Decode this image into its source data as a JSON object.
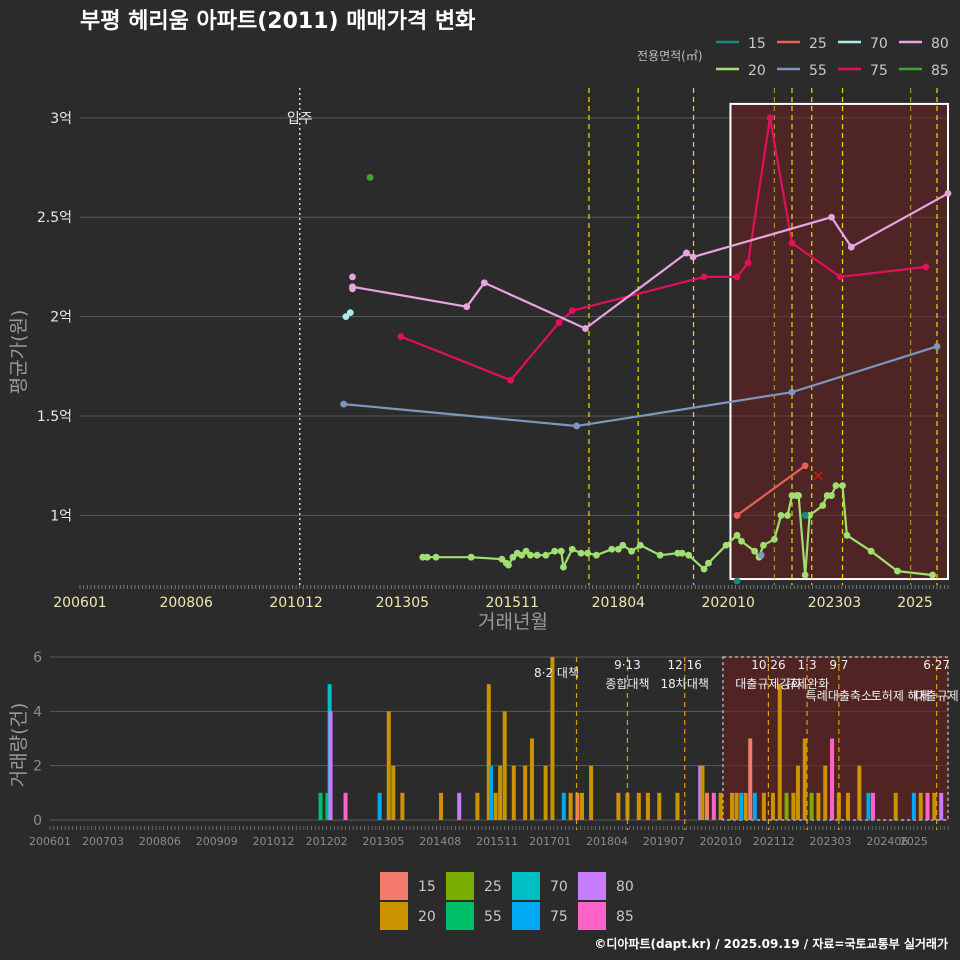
{
  "chart_data": [
    {
      "type": "line",
      "title": "부평 헤리움 아파트(2011) 매매가격 변화",
      "xlabel": "거래년월",
      "ylabel": "평균가(원)",
      "x_ticks": [
        "200601",
        "200806",
        "201012",
        "201305",
        "201511",
        "201804",
        "202010",
        "202303",
        "2025"
      ],
      "y_ticks": [
        {
          "v": 1.0,
          "label": "1억"
        },
        {
          "v": 1.5,
          "label": "1.5억"
        },
        {
          "v": 2.0,
          "label": "2억"
        },
        {
          "v": 2.5,
          "label": "2.5억"
        },
        {
          "v": 3.0,
          "label": "3억"
        }
      ],
      "ylim": [
        0.65,
        3.15
      ],
      "xlim": [
        2006.0,
        2025.75
      ],
      "legend_title": "전용면적(㎡)",
      "legend": [
        {
          "name": "15",
          "color": "#1a8a86"
        },
        {
          "name": "25",
          "color": "#e8605a"
        },
        {
          "name": "70",
          "color": "#a8ecec"
        },
        {
          "name": "80",
          "color": "#e8a4e0"
        },
        {
          "name": "20",
          "color": "#a0e070"
        },
        {
          "name": "55",
          "color": "#7f96bc"
        },
        {
          "name": "75",
          "color": "#e0105a"
        },
        {
          "name": "85",
          "color": "#3aa832"
        }
      ],
      "move_in": {
        "x": 2011.0,
        "label": "입주"
      },
      "policy_lines": [
        2017.58,
        2018.7,
        2019.96,
        2022.2,
        2022.65,
        2023.35,
        2025.5
      ],
      "policy_lines_shaded": [
        2021.8,
        2024.9
      ],
      "highlight": {
        "x0": 2020.8,
        "x1": 2025.75,
        "y0": 0.68,
        "y1": 3.07
      },
      "series": [
        {
          "name": "20",
          "color": "#a0e070",
          "points": [
            [
              2013.8,
              0.79
            ],
            [
              2013.9,
              0.79
            ],
            [
              2014.1,
              0.79
            ],
            [
              2014.9,
              0.79
            ],
            [
              2015.6,
              0.78
            ],
            [
              2015.7,
              0.76
            ],
            [
              2015.75,
              0.75
            ],
            [
              2015.85,
              0.79
            ],
            [
              2015.95,
              0.81
            ],
            [
              2016.05,
              0.8
            ],
            [
              2016.15,
              0.82
            ],
            [
              2016.25,
              0.8
            ],
            [
              2016.4,
              0.8
            ],
            [
              2016.6,
              0.8
            ],
            [
              2016.8,
              0.82
            ],
            [
              2016.95,
              0.82
            ],
            [
              2017.0,
              0.74
            ],
            [
              2017.2,
              0.83
            ],
            [
              2017.4,
              0.81
            ],
            [
              2017.55,
              0.81
            ],
            [
              2017.75,
              0.8
            ],
            [
              2018.1,
              0.83
            ],
            [
              2018.25,
              0.83
            ],
            [
              2018.35,
              0.85
            ],
            [
              2018.55,
              0.82
            ],
            [
              2018.75,
              0.85
            ],
            [
              2019.2,
              0.8
            ],
            [
              2019.6,
              0.81
            ],
            [
              2019.7,
              0.81
            ],
            [
              2019.85,
              0.8
            ],
            [
              2020.2,
              0.73
            ],
            [
              2020.3,
              0.76
            ],
            [
              2020.7,
              0.85
            ],
            [
              2020.95,
              0.9
            ],
            [
              2021.05,
              0.87
            ],
            [
              2021.35,
              0.82
            ],
            [
              2021.45,
              0.79
            ],
            [
              2021.55,
              0.85
            ],
            [
              2021.8,
              0.88
            ],
            [
              2021.95,
              1.0
            ],
            [
              2022.1,
              1.0
            ],
            [
              2022.2,
              1.1
            ],
            [
              2022.3,
              1.1
            ],
            [
              2022.35,
              1.1
            ],
            [
              2022.5,
              0.7
            ],
            [
              2022.6,
              1.0
            ],
            [
              2022.9,
              1.05
            ],
            [
              2023.0,
              1.1
            ],
            [
              2023.1,
              1.1
            ],
            [
              2023.2,
              1.15
            ],
            [
              2023.35,
              1.15
            ],
            [
              2023.45,
              0.9
            ],
            [
              2024.0,
              0.82
            ],
            [
              2024.6,
              0.72
            ],
            [
              2025.4,
              0.7
            ]
          ]
        },
        {
          "name": "25",
          "color": "#e8605a",
          "points": [
            [
              2020.95,
              1.0
            ],
            [
              2022.5,
              1.25
            ]
          ]
        },
        {
          "name": "55",
          "color": "#7f96bc",
          "points": [
            [
              2012.0,
              1.56
            ],
            [
              2017.3,
              1.45
            ],
            [
              2022.2,
              1.62
            ],
            [
              2025.5,
              1.85
            ]
          ]
        },
        {
          "name": "75",
          "color": "#e0105a",
          "points": [
            [
              2013.3,
              1.9
            ],
            [
              2015.8,
              1.68
            ],
            [
              2016.9,
              1.97
            ],
            [
              2017.2,
              2.03
            ],
            [
              2020.2,
              2.2
            ],
            [
              2020.95,
              2.2
            ],
            [
              2021.2,
              2.27
            ],
            [
              2021.7,
              3.0
            ],
            [
              2022.2,
              2.37
            ],
            [
              2023.3,
              2.2
            ],
            [
              2025.25,
              2.25
            ]
          ]
        },
        {
          "name": "80",
          "color": "#e8a4e0",
          "points": [
            [
              2012.2,
              2.15
            ],
            [
              2014.8,
              2.05
            ],
            [
              2015.2,
              2.17
            ],
            [
              2017.5,
              1.94
            ],
            [
              2019.8,
              2.32
            ],
            [
              2019.95,
              2.3
            ],
            [
              2023.1,
              2.5
            ],
            [
              2023.55,
              2.35
            ],
            [
              2025.75,
              2.62
            ]
          ]
        }
      ],
      "points_only": [
        {
          "series": "80",
          "color": "#e8a4e0",
          "x": 2012.2,
          "y": 2.2
        },
        {
          "series": "80",
          "color": "#e8a4e0",
          "x": 2012.2,
          "y": 2.14
        },
        {
          "series": "80",
          "color": "#e8a4e0",
          "x": 2019.8,
          "y": 2.32
        },
        {
          "series": "70",
          "color": "#a8ecec",
          "x": 2012.05,
          "y": 2.0
        },
        {
          "series": "70",
          "color": "#a8ecec",
          "x": 2012.15,
          "y": 2.02
        },
        {
          "series": "85",
          "color": "#3aa832",
          "x": 2012.6,
          "y": 2.7
        },
        {
          "series": "15",
          "color": "#1a8a86",
          "x": 2020.95,
          "y": 0.67
        },
        {
          "series": "15",
          "color": "#1a8a86",
          "x": 2022.5,
          "y": 1.0
        },
        {
          "series": "55",
          "color": "#7f96bc",
          "x": 2021.5,
          "y": 0.8
        },
        {
          "series": "25",
          "color": "#c81818",
          "x": 2022.8,
          "y": 1.2,
          "marker": "x"
        }
      ]
    },
    {
      "type": "bar",
      "ylabel": "거래량(건)",
      "ylim": [
        0,
        6
      ],
      "y_ticks": [
        0,
        2,
        4,
        6
      ],
      "x_ticks": [
        "200601",
        "200703",
        "200806",
        "200909",
        "201012",
        "201202",
        "201305",
        "201408",
        "201511",
        "201701",
        "201804",
        "201907",
        "202010",
        "202112",
        "202303",
        "202406",
        "2025"
      ],
      "xlim": [
        2006.0,
        2025.75
      ],
      "legend": [
        {
          "name": "15",
          "color": "#f47a6e"
        },
        {
          "name": "20",
          "color": "#c99400"
        },
        {
          "name": "25",
          "color": "#79ad00"
        },
        {
          "name": "55",
          "color": "#00bf6a"
        },
        {
          "name": "70",
          "color": "#00bfc4"
        },
        {
          "name": "75",
          "color": "#00a9f4"
        },
        {
          "name": "80",
          "color": "#c77cff"
        },
        {
          "name": "85",
          "color": "#ff62c9"
        }
      ],
      "annotations": [
        {
          "x": 2017.58,
          "line1": "8·2 대책",
          "line2": ""
        },
        {
          "x": 2018.7,
          "line1": "9·13",
          "line2": "종합대책"
        },
        {
          "x": 2019.96,
          "line1": "12·16",
          "line2": "18차대책"
        },
        {
          "x": 2021.8,
          "line1": "10·26",
          "line2": "대출규제강화"
        },
        {
          "x": 2022.65,
          "line1": "1·3",
          "line2": "규제완화"
        },
        {
          "x": 2023.35,
          "line1": "9·7",
          "line2": "특례대출축소"
        },
        {
          "x": 2025.5,
          "line1": "6·27",
          "line2": "대출규제"
        }
      ],
      "annotation_extra": "토허제 해제",
      "bars": [
        {
          "x": 2011.95,
          "v": 1,
          "c": "#00bf6a"
        },
        {
          "x": 2012.1,
          "v": 1,
          "c": "#00bf6a"
        },
        {
          "x": 2012.15,
          "v": 5,
          "c": "#00bfc4"
        },
        {
          "x": 2012.17,
          "v": 4,
          "c": "#c77cff"
        },
        {
          "x": 2012.5,
          "v": 1,
          "c": "#ff62c9"
        },
        {
          "x": 2013.25,
          "v": 1,
          "c": "#00a9f4"
        },
        {
          "x": 2013.45,
          "v": 4,
          "c": "#c99400"
        },
        {
          "x": 2013.55,
          "v": 2,
          "c": "#c99400"
        },
        {
          "x": 2013.75,
          "v": 1,
          "c": "#c99400"
        },
        {
          "x": 2014.6,
          "v": 1,
          "c": "#c99400"
        },
        {
          "x": 2015.0,
          "v": 1,
          "c": "#c77cff"
        },
        {
          "x": 2015.4,
          "v": 1,
          "c": "#c99400"
        },
        {
          "x": 2015.65,
          "v": 5,
          "c": "#c99400"
        },
        {
          "x": 2015.7,
          "v": 2,
          "c": "#00a9f4"
        },
        {
          "x": 2015.8,
          "v": 1,
          "c": "#c99400"
        },
        {
          "x": 2015.9,
          "v": 2,
          "c": "#c99400"
        },
        {
          "x": 2016.0,
          "v": 4,
          "c": "#c99400"
        },
        {
          "x": 2016.2,
          "v": 2,
          "c": "#c99400"
        },
        {
          "x": 2016.45,
          "v": 2,
          "c": "#c99400"
        },
        {
          "x": 2016.6,
          "v": 3,
          "c": "#c99400"
        },
        {
          "x": 2016.9,
          "v": 2,
          "c": "#c99400"
        },
        {
          "x": 2017.05,
          "v": 6,
          "c": "#c99400"
        },
        {
          "x": 2017.3,
          "v": 1,
          "c": "#00a9f4"
        },
        {
          "x": 2017.45,
          "v": 1,
          "c": "#c99400"
        },
        {
          "x": 2017.6,
          "v": 1,
          "c": "#f47a6e"
        },
        {
          "x": 2017.7,
          "v": 1,
          "c": "#c99400"
        },
        {
          "x": 2017.9,
          "v": 2,
          "c": "#c99400"
        },
        {
          "x": 2018.5,
          "v": 1,
          "c": "#c99400"
        },
        {
          "x": 2018.7,
          "v": 1,
          "c": "#c99400"
        },
        {
          "x": 2018.95,
          "v": 1,
          "c": "#c99400"
        },
        {
          "x": 2019.15,
          "v": 1,
          "c": "#c99400"
        },
        {
          "x": 2019.4,
          "v": 1,
          "c": "#c99400"
        },
        {
          "x": 2019.8,
          "v": 1,
          "c": "#c99400"
        },
        {
          "x": 2020.3,
          "v": 2,
          "c": "#c77cff"
        },
        {
          "x": 2020.35,
          "v": 2,
          "c": "#c99400"
        },
        {
          "x": 2020.45,
          "v": 1,
          "c": "#f47a6e"
        },
        {
          "x": 2020.6,
          "v": 1,
          "c": "#ff62c9"
        },
        {
          "x": 2020.75,
          "v": 1,
          "c": "#c99400"
        },
        {
          "x": 2021.0,
          "v": 1,
          "c": "#c99400"
        },
        {
          "x": 2021.1,
          "v": 1,
          "c": "#c99400"
        },
        {
          "x": 2021.2,
          "v": 1,
          "c": "#00a9f4"
        },
        {
          "x": 2021.3,
          "v": 1,
          "c": "#c99400"
        },
        {
          "x": 2021.4,
          "v": 3,
          "c": "#f47a6e"
        },
        {
          "x": 2021.5,
          "v": 1,
          "c": "#00a9f4"
        },
        {
          "x": 2021.7,
          "v": 1,
          "c": "#c99400"
        },
        {
          "x": 2021.9,
          "v": 1,
          "c": "#c99400"
        },
        {
          "x": 2022.05,
          "v": 5,
          "c": "#c99400"
        },
        {
          "x": 2022.2,
          "v": 1,
          "c": "#79ad00"
        },
        {
          "x": 2022.35,
          "v": 1,
          "c": "#c99400"
        },
        {
          "x": 2022.45,
          "v": 2,
          "c": "#c99400"
        },
        {
          "x": 2022.6,
          "v": 3,
          "c": "#c99400"
        },
        {
          "x": 2022.75,
          "v": 1,
          "c": "#79ad00"
        },
        {
          "x": 2022.9,
          "v": 1,
          "c": "#c99400"
        },
        {
          "x": 2023.05,
          "v": 2,
          "c": "#c99400"
        },
        {
          "x": 2023.2,
          "v": 3,
          "c": "#ff62c9"
        },
        {
          "x": 2023.35,
          "v": 1,
          "c": "#c99400"
        },
        {
          "x": 2023.55,
          "v": 1,
          "c": "#c99400"
        },
        {
          "x": 2023.8,
          "v": 2,
          "c": "#c99400"
        },
        {
          "x": 2024.0,
          "v": 1,
          "c": "#00a9f4"
        },
        {
          "x": 2024.1,
          "v": 1,
          "c": "#ff62c9"
        },
        {
          "x": 2024.6,
          "v": 1,
          "c": "#c99400"
        },
        {
          "x": 2025.0,
          "v": 1,
          "c": "#00a9f4"
        },
        {
          "x": 2025.15,
          "v": 1,
          "c": "#c99400"
        },
        {
          "x": 2025.3,
          "v": 1,
          "c": "#ff62c9"
        },
        {
          "x": 2025.45,
          "v": 1,
          "c": "#c99400"
        },
        {
          "x": 2025.6,
          "v": 1,
          "c": "#c77cff"
        }
      ]
    }
  ],
  "credit": "©디아파트(dapt.kr) / 2025.09.19 / 자료=국토교통부 실거래가"
}
